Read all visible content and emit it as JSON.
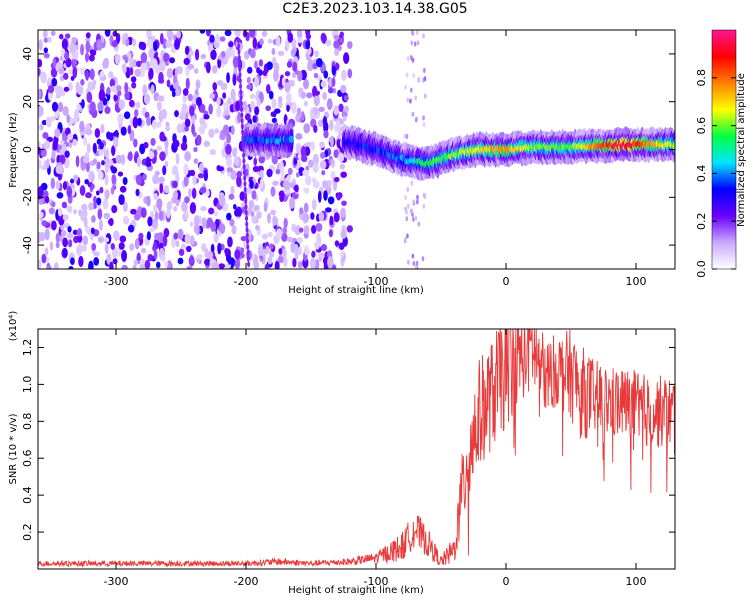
{
  "title": "C2E3.2023.103.14.38.G05",
  "chart_data": [
    {
      "type": "heatmap",
      "xlabel": "Height of straight line (km)",
      "ylabel": "Frequency (Hz)",
      "xlim": [
        -360,
        130
      ],
      "ylim": [
        -50,
        50
      ],
      "xticks": [
        -300,
        -200,
        -100,
        0,
        100
      ],
      "xtick_labels": [
        "-300",
        "-200",
        "-100",
        "0",
        "100"
      ],
      "yticks": [
        -40,
        -20,
        0,
        20,
        40
      ],
      "ytick_labels": [
        "-40",
        "-20",
        "0",
        "20",
        "40"
      ],
      "colorbar": {
        "label": "Normalized spectral amplitude",
        "range": [
          0,
          1
        ],
        "ticks": [
          0.0,
          0.2,
          0.4,
          0.6,
          0.8
        ],
        "tick_labels": [
          "0.0",
          "0.2",
          "0.4",
          "0.6",
          "0.8"
        ],
        "colors": [
          "#ffffff",
          "#c9a8ff",
          "#6a00ff",
          "#0000ff",
          "#00e5ff",
          "#00ff40",
          "#ffff00",
          "#ff7f00",
          "#ff0000",
          "#ff1493"
        ]
      },
      "noise_region": {
        "x": [
          -360,
          -120
        ],
        "y": [
          -50,
          50
        ],
        "typical_amplitude": 0.1
      },
      "signal_trace": [
        {
          "x": -200,
          "y": 4,
          "amplitude": 0.35
        },
        {
          "x": -175,
          "y": 4,
          "amplitude": 0.4
        },
        {
          "x": -120,
          "y": 3,
          "amplitude": 0.3
        },
        {
          "x": -100,
          "y": 0,
          "amplitude": 0.35
        },
        {
          "x": -80,
          "y": -4,
          "amplitude": 0.4
        },
        {
          "x": -60,
          "y": -6,
          "amplitude": 0.55
        },
        {
          "x": -40,
          "y": -2,
          "amplitude": 0.6
        },
        {
          "x": -20,
          "y": 0,
          "amplitude": 0.7
        },
        {
          "x": 0,
          "y": 0,
          "amplitude": 0.75
        },
        {
          "x": 20,
          "y": 1,
          "amplitude": 0.6
        },
        {
          "x": 50,
          "y": 1,
          "amplitude": 0.6
        },
        {
          "x": 90,
          "y": 2,
          "amplitude": 0.95
        },
        {
          "x": 130,
          "y": 2,
          "amplitude": 0.6
        }
      ]
    },
    {
      "type": "line",
      "xlabel": "Height of straight line (km)",
      "ylabel": "SNR (10 * v/v)",
      "y_multiplier": "(x10⁴)",
      "xlim": [
        -360,
        130
      ],
      "ylim": [
        0,
        1.3
      ],
      "xticks": [
        -300,
        -200,
        -100,
        0,
        100
      ],
      "xtick_labels": [
        "-300",
        "-200",
        "-100",
        "0",
        "100"
      ],
      "yticks": [
        0.2,
        0.4,
        0.6,
        0.8,
        1.0,
        1.2
      ],
      "ytick_labels": [
        "0.2",
        "0.4",
        "0.6",
        "0.8",
        "1.0",
        "1.2"
      ],
      "series": [
        {
          "color": "#e83a3a",
          "envelope": {
            "x": [
              -360,
              -300,
              -250,
              -200,
              -175,
              -150,
              -120,
              -100,
              -80,
              -70,
              -60,
              -50,
              -40,
              -30,
              -20,
              -10,
              0,
              10,
              20,
              30,
              40,
              50,
              60,
              70,
              80,
              90,
              100,
              110,
              120,
              130
            ],
            "y": [
              0.03,
              0.03,
              0.03,
              0.03,
              0.04,
              0.03,
              0.04,
              0.06,
              0.12,
              0.22,
              0.14,
              0.04,
              0.1,
              0.6,
              0.85,
              0.95,
              1.1,
              1.15,
              1.2,
              1.05,
              1.08,
              1.05,
              0.95,
              0.93,
              0.9,
              0.9,
              0.88,
              0.85,
              0.85,
              0.85
            ],
            "amp": [
              0.015,
              0.015,
              0.015,
              0.015,
              0.02,
              0.015,
              0.02,
              0.03,
              0.08,
              0.1,
              0.08,
              0.03,
              0.08,
              0.3,
              0.3,
              0.3,
              0.35,
              0.25,
              0.25,
              0.2,
              0.2,
              0.25,
              0.25,
              0.2,
              0.2,
              0.2,
              0.2,
              0.2,
              0.2,
              0.2
            ]
          }
        }
      ]
    }
  ]
}
